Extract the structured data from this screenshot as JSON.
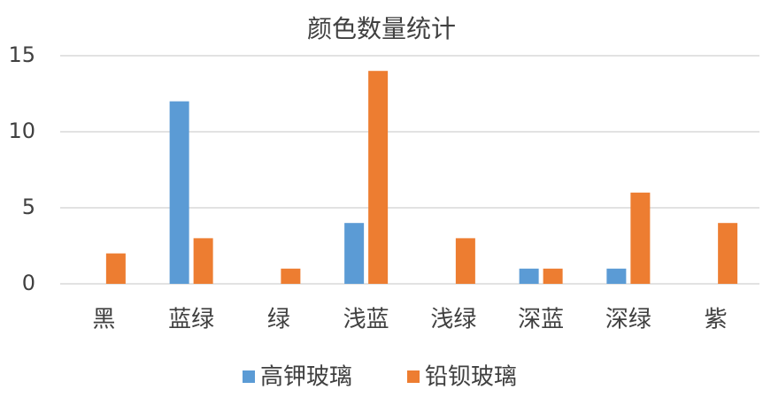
{
  "chart_data": {
    "type": "bar",
    "title": "颜色数量统计",
    "categories": [
      "黑",
      "蓝绿",
      "绿",
      "浅蓝",
      "浅绿",
      "深蓝",
      "深绿",
      "紫"
    ],
    "series": [
      {
        "name": "高钾玻璃",
        "color": "#5b9bd5",
        "values": [
          0,
          12,
          0,
          4,
          0,
          1,
          1,
          0
        ]
      },
      {
        "name": "铅钡玻璃",
        "color": "#ed7d31",
        "values": [
          2,
          3,
          1,
          14,
          3,
          1,
          6,
          4
        ]
      }
    ],
    "ylim": [
      0,
      15
    ],
    "yticks": [
      0,
      5,
      10,
      15
    ],
    "grid": true,
    "legend": "bottom"
  }
}
